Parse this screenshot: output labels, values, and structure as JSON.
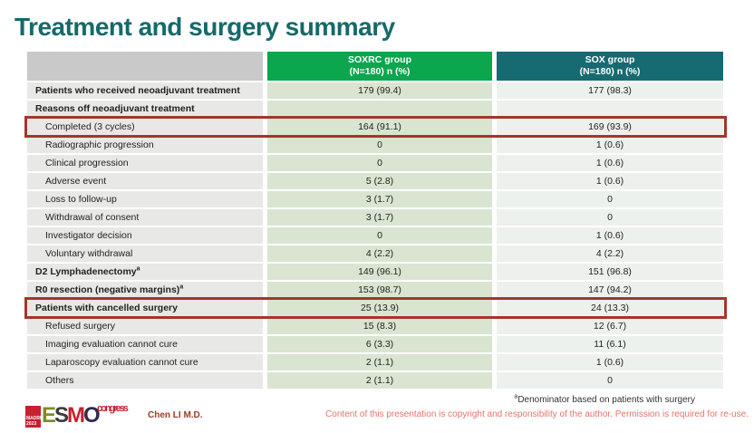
{
  "slide": {
    "title": "Treatment and surgery summary"
  },
  "table": {
    "header": {
      "col1": {
        "line1": "SOXRC group",
        "line2": "(N=180)  n (%)"
      },
      "col2": {
        "line1": "SOX group",
        "line2": "(N=180)  n (%)"
      }
    },
    "rows": [
      {
        "label": "Patients who received neoadjuvant treatment",
        "bold": true,
        "indent": false,
        "highlight": false,
        "soxrc": "179 (99.4)",
        "sox": "177 (98.3)"
      },
      {
        "label": "Reasons off neoadjuvant treatment",
        "bold": true,
        "indent": false,
        "highlight": false,
        "soxrc": "",
        "sox": ""
      },
      {
        "label": "Completed (3 cycles)",
        "bold": false,
        "indent": true,
        "highlight": true,
        "soxrc": "164 (91.1)",
        "sox": "169 (93.9)"
      },
      {
        "label": "Radiographic progression",
        "bold": false,
        "indent": true,
        "highlight": false,
        "soxrc": "0",
        "sox": "1 (0.6)"
      },
      {
        "label": "Clinical progression",
        "bold": false,
        "indent": true,
        "highlight": false,
        "soxrc": "0",
        "sox": "1 (0.6)"
      },
      {
        "label": "Adverse event",
        "bold": false,
        "indent": true,
        "highlight": false,
        "soxrc": "5 (2.8)",
        "sox": "1 (0.6)"
      },
      {
        "label": "Loss to follow-up",
        "bold": false,
        "indent": true,
        "highlight": false,
        "soxrc": "3 (1.7)",
        "sox": "0"
      },
      {
        "label": "Withdrawal of consent",
        "bold": false,
        "indent": true,
        "highlight": false,
        "soxrc": "3 (1.7)",
        "sox": "0"
      },
      {
        "label": "Investigator decision",
        "bold": false,
        "indent": true,
        "highlight": false,
        "soxrc": "0",
        "sox": "1 (0.6)"
      },
      {
        "label": "Voluntary withdrawal",
        "bold": false,
        "indent": true,
        "highlight": false,
        "soxrc": "4 (2.2)",
        "sox": "4 (2.2)"
      },
      {
        "label": "D2 Lymphadenectomy",
        "sup": "a",
        "bold": true,
        "indent": false,
        "highlight": false,
        "soxrc": "149 (96.1)",
        "sox": "151 (96.8)"
      },
      {
        "label": "R0 resection (negative margins)",
        "sup": "a",
        "bold": true,
        "indent": false,
        "highlight": false,
        "soxrc": "153 (98.7)",
        "sox": "147 (94.2)"
      },
      {
        "label": "Patients with cancelled surgery",
        "bold": true,
        "indent": false,
        "highlight": true,
        "soxrc": "25 (13.9)",
        "sox": "24 (13.3)"
      },
      {
        "label": "Refused surgery",
        "bold": false,
        "indent": true,
        "highlight": false,
        "soxrc": "15 (8.3)",
        "sox": "12 (6.7)"
      },
      {
        "label": "Imaging evaluation cannot cure",
        "bold": false,
        "indent": true,
        "highlight": false,
        "soxrc": "6 (3.3)",
        "sox": "11 (6.1)"
      },
      {
        "label": "Laparoscopy evaluation cannot cure",
        "bold": false,
        "indent": true,
        "highlight": false,
        "soxrc": "2 (1.1)",
        "sox": "1 (0.6)"
      },
      {
        "label": "Others",
        "bold": false,
        "indent": true,
        "highlight": false,
        "soxrc": "2 (1.1)",
        "sox": "0"
      }
    ]
  },
  "footer": {
    "logo": {
      "madrid": "MADRID",
      "year": "2023",
      "esmo": [
        "E",
        "S",
        "M",
        "O"
      ],
      "congress": "congress"
    },
    "author": "Chen LI M.D.",
    "footnote_sup": "a",
    "footnote": "Denominator based on patients with surgery",
    "copyright": "Content of this presentation is copyright and responsibility of the author. Permission is required for re-use."
  },
  "colors": {
    "title_teal": "#15696B",
    "header_green": "#0CA64E",
    "header_teal": "#186A72",
    "header_gray": "#C9C9C9",
    "label_cell": "#E8E8E6",
    "soxrc_cell": "#D9E5D1",
    "sox_cell": "#EDF1EE",
    "highlight_red": "#A5352B",
    "copyright_pink": "#E4736B",
    "author_red": "#A03A28",
    "logo_red": "#C8202F"
  }
}
